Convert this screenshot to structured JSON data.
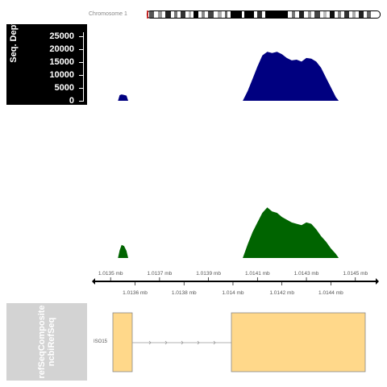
{
  "chromosome": {
    "label": "Chromosome 1"
  },
  "depth_track": {
    "title": "Seq. Depth",
    "y_ticks": [
      "25000",
      "20000",
      "15000",
      "10000",
      "5000",
      "0"
    ],
    "colors": {
      "navy": "#000080",
      "green": "#006400"
    }
  },
  "axis": {
    "top_labels": [
      "1.0135 mb",
      "1.0137 mb",
      "1.0139 mb",
      "1.0141 mb",
      "1.0143 mb",
      "1.0145 mb"
    ],
    "bottom_labels": [
      "1.0136 mb",
      "1.0138 mb",
      "1.014 mb",
      "1.0142 mb",
      "1.0144 mb"
    ]
  },
  "gene_track": {
    "title_line1": "refSeqComposite",
    "title_line2": "ncbiRefSeq",
    "isoform_label": "ISO15",
    "exon_color": "#ffd88a"
  },
  "chart_data": {
    "type": "area",
    "title": "",
    "xlabel": "",
    "ylabel": "Seq. Depth",
    "ylim": [
      0,
      28000
    ],
    "xlim": [
      1.01345,
      1.01457
    ],
    "x_unit": "mb",
    "series": [
      {
        "points": [
          [
            1.01353,
            0
          ],
          [
            1.013537,
            2300
          ],
          [
            1.013545,
            2600
          ],
          [
            1.013555,
            2400
          ],
          [
            1.013565,
            2100
          ],
          [
            1.013572,
            0
          ],
          [
            1.01404,
            0
          ],
          [
            1.01406,
            4000
          ],
          [
            1.01408,
            9000
          ],
          [
            1.0141,
            14000
          ],
          [
            1.01412,
            18500
          ],
          [
            1.01414,
            20000
          ],
          [
            1.01416,
            19500
          ],
          [
            1.01418,
            20000
          ],
          [
            1.0142,
            19000
          ],
          [
            1.01422,
            17500
          ],
          [
            1.01424,
            16500
          ],
          [
            1.01426,
            16800
          ],
          [
            1.01428,
            16000
          ],
          [
            1.0143,
            17500
          ],
          [
            1.01432,
            17200
          ],
          [
            1.01434,
            16000
          ],
          [
            1.01436,
            13500
          ],
          [
            1.01438,
            9500
          ],
          [
            1.0144,
            5500
          ],
          [
            1.01442,
            1500
          ],
          [
            1.014432,
            0
          ]
        ]
      },
      {
        "points": [
          [
            1.01353,
            0
          ],
          [
            1.013537,
            2800
          ],
          [
            1.013545,
            4800
          ],
          [
            1.013555,
            4400
          ],
          [
            1.013565,
            2600
          ],
          [
            1.013572,
            0
          ],
          [
            1.01404,
            0
          ],
          [
            1.01406,
            5000
          ],
          [
            1.01408,
            9500
          ],
          [
            1.0141,
            13000
          ],
          [
            1.01412,
            16500
          ],
          [
            1.01414,
            18500
          ],
          [
            1.01416,
            17000
          ],
          [
            1.01418,
            16500
          ],
          [
            1.0142,
            15000
          ],
          [
            1.01422,
            14000
          ],
          [
            1.01424,
            13000
          ],
          [
            1.01426,
            12500
          ],
          [
            1.01428,
            12000
          ],
          [
            1.0143,
            13000
          ],
          [
            1.01432,
            12500
          ],
          [
            1.01434,
            10500
          ],
          [
            1.01436,
            8000
          ],
          [
            1.01438,
            6000
          ],
          [
            1.0144,
            3500
          ],
          [
            1.01442,
            1500
          ],
          [
            1.014432,
            0
          ]
        ]
      }
    ]
  }
}
